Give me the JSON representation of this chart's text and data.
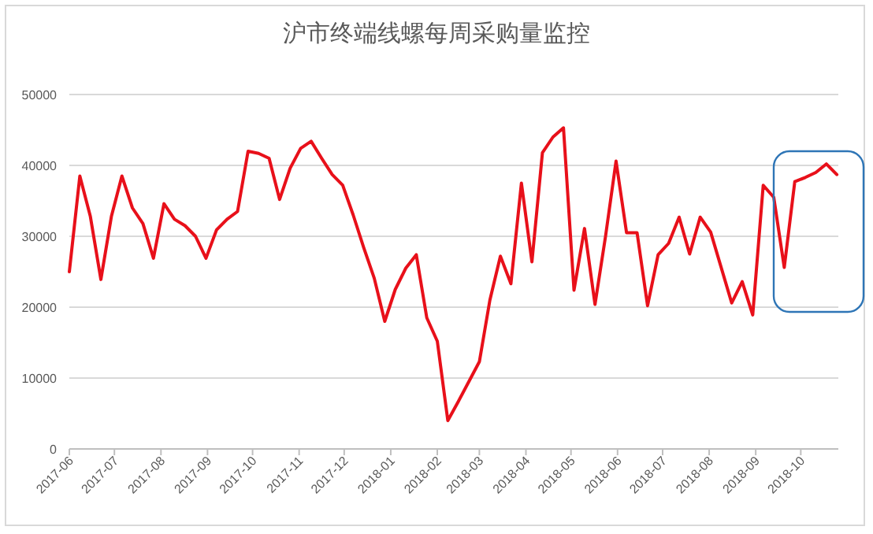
{
  "chart_data": {
    "type": "line",
    "title": "沪市终端线螺每周采购量监控",
    "x": [
      "2017-06-01",
      "2017-06-08",
      "2017-06-15",
      "2017-06-22",
      "2017-06-29",
      "2017-07-06",
      "2017-07-13",
      "2017-07-20",
      "2017-07-27",
      "2017-08-03",
      "2017-08-10",
      "2017-08-17",
      "2017-08-24",
      "2017-08-31",
      "2017-09-07",
      "2017-09-14",
      "2017-09-21",
      "2017-09-28",
      "2017-10-05",
      "2017-10-12",
      "2017-10-19",
      "2017-10-26",
      "2017-11-02",
      "2017-11-09",
      "2017-11-16",
      "2017-11-23",
      "2017-11-30",
      "2017-12-07",
      "2017-12-14",
      "2017-12-21",
      "2017-12-28",
      "2018-01-04",
      "2018-01-11",
      "2018-01-18",
      "2018-01-25",
      "2018-02-01",
      "2018-02-08",
      "2018-02-15",
      "2018-02-22",
      "2018-03-01",
      "2018-03-08",
      "2018-03-15",
      "2018-03-22",
      "2018-03-29",
      "2018-04-05",
      "2018-04-12",
      "2018-04-19",
      "2018-04-26",
      "2018-05-03",
      "2018-05-10",
      "2018-05-17",
      "2018-05-24",
      "2018-05-31",
      "2018-06-07",
      "2018-06-14",
      "2018-06-21",
      "2018-06-28",
      "2018-07-05",
      "2018-07-12",
      "2018-07-19",
      "2018-07-26",
      "2018-08-02",
      "2018-08-09",
      "2018-08-16",
      "2018-08-23",
      "2018-08-30",
      "2018-09-06",
      "2018-09-13",
      "2018-09-20",
      "2018-09-27",
      "2018-10-04",
      "2018-10-11",
      "2018-10-18",
      "2018-10-25"
    ],
    "series": [
      {
        "color": "#e8101a",
        "values": [
          25000,
          38500,
          32800,
          23900,
          32800,
          38500,
          34000,
          31800,
          26900,
          34600,
          32400,
          31500,
          30000,
          26900,
          30900,
          32400,
          33500,
          42000,
          41700,
          41000,
          35200,
          39600,
          42400,
          43400,
          41000,
          38700,
          37200,
          33000,
          28400,
          24100,
          18000,
          22500,
          25500,
          27400,
          18500,
          15200,
          4000,
          6700,
          9500,
          12300,
          21000,
          27200,
          23300,
          37500,
          26400,
          41800,
          44000,
          45300,
          22400,
          31100,
          20400,
          30000,
          40600,
          30500,
          30500,
          20200,
          27400,
          29000,
          32700,
          27500,
          32700,
          30600,
          25600,
          20600,
          23600,
          18900,
          37200,
          35500,
          25600,
          37700,
          38300,
          39000,
          40200,
          38700
        ]
      }
    ],
    "xlim": [
      "2017-06-01",
      "2018-10-26"
    ],
    "xticks": [
      {
        "value": "2017-06-01",
        "label": "2017-06"
      },
      {
        "value": "2017-07-01",
        "label": "2017-07"
      },
      {
        "value": "2017-08-01",
        "label": "2017-08"
      },
      {
        "value": "2017-09-01",
        "label": "2017-09"
      },
      {
        "value": "2017-10-01",
        "label": "2017-10"
      },
      {
        "value": "2017-11-01",
        "label": "2017-11"
      },
      {
        "value": "2017-12-01",
        "label": "2017-12"
      },
      {
        "value": "2018-01-01",
        "label": "2018-01"
      },
      {
        "value": "2018-02-01",
        "label": "2018-02"
      },
      {
        "value": "2018-03-01",
        "label": "2018-03"
      },
      {
        "value": "2018-04-01",
        "label": "2018-04"
      },
      {
        "value": "2018-05-01",
        "label": "2018-05"
      },
      {
        "value": "2018-06-01",
        "label": "2018-06"
      },
      {
        "value": "2018-07-01",
        "label": "2018-07"
      },
      {
        "value": "2018-08-01",
        "label": "2018-08"
      },
      {
        "value": "2018-09-01",
        "label": "2018-09"
      },
      {
        "value": "2018-10-01",
        "label": "2018-10"
      }
    ],
    "ylim": [
      0,
      50000
    ],
    "yticks": [
      0,
      10000,
      20000,
      30000,
      40000,
      50000
    ],
    "grid": "y",
    "marker": "none",
    "line_style": "solid"
  }
}
